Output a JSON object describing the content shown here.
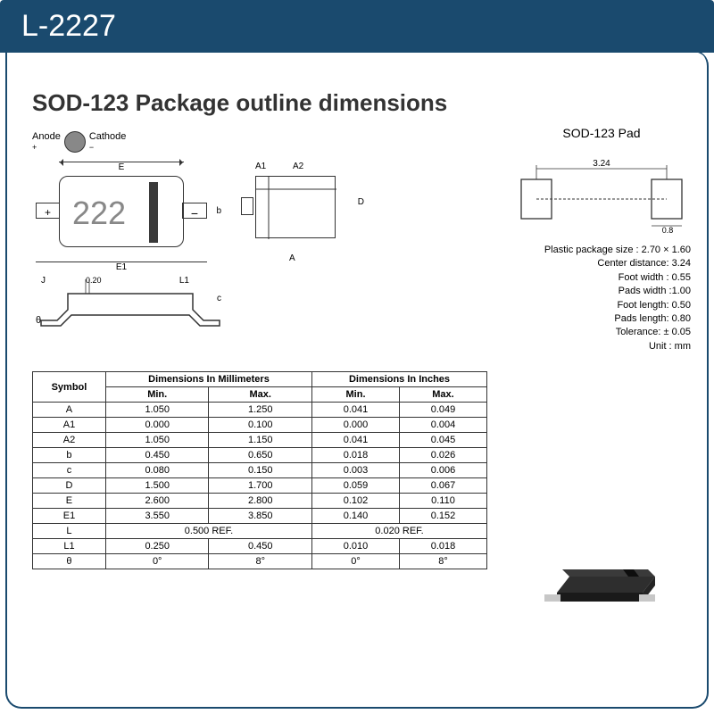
{
  "header": {
    "part_number": "L-2227"
  },
  "title": "SOD-123 Package outline dimensions",
  "top_diagram": {
    "anode": "Anode",
    "anode_sign": "+",
    "cathode": "Cathode",
    "cathode_sign": "−",
    "marking": "222",
    "plus": "+",
    "minus": "−",
    "dim_e": "E",
    "dim_e1": "E1",
    "dim_b": "b"
  },
  "side_diagram": {
    "a1": "A1",
    "a2": "A2",
    "d": "D",
    "a": "A"
  },
  "profile_diagram": {
    "j": "J",
    "l1": "L1",
    "val020": "0.20",
    "c": "c",
    "theta": "θ"
  },
  "pad": {
    "title": "SOD-123 Pad",
    "dim_324": "3.24",
    "dim_08": "0.8",
    "specs": [
      "Plastic package size : 2.70 × 1.60",
      "Center distance: 3.24",
      "Foot width : 0.55",
      "Pads width :1.00",
      "Foot length: 0.50",
      "Pads length: 0.80",
      "Tolerance: ± 0.05",
      "Unit : mm"
    ]
  },
  "table": {
    "header_symbol": "Symbol",
    "header_mm": "Dimensions In Millimeters",
    "header_in": "Dimensions In Inches",
    "sub_min": "Min.",
    "sub_max": "Max.",
    "rows": [
      {
        "sym": "A",
        "mm_min": "1.050",
        "mm_max": "1.250",
        "in_min": "0.041",
        "in_max": "0.049"
      },
      {
        "sym": "A1",
        "mm_min": "0.000",
        "mm_max": "0.100",
        "in_min": "0.000",
        "in_max": "0.004"
      },
      {
        "sym": "A2",
        "mm_min": "1.050",
        "mm_max": "1.150",
        "in_min": "0.041",
        "in_max": "0.045"
      },
      {
        "sym": "b",
        "mm_min": "0.450",
        "mm_max": "0.650",
        "in_min": "0.018",
        "in_max": "0.026"
      },
      {
        "sym": "c",
        "mm_min": "0.080",
        "mm_max": "0.150",
        "in_min": "0.003",
        "in_max": "0.006"
      },
      {
        "sym": "D",
        "mm_min": "1.500",
        "mm_max": "1.700",
        "in_min": "0.059",
        "in_max": "0.067"
      },
      {
        "sym": "E",
        "mm_min": "2.600",
        "mm_max": "2.800",
        "in_min": "0.102",
        "in_max": "0.110"
      },
      {
        "sym": "E1",
        "mm_min": "3.550",
        "mm_max": "3.850",
        "in_min": "0.140",
        "in_max": "0.152"
      }
    ],
    "row_l": {
      "sym": "L",
      "mm": "0.500 REF.",
      "in": "0.020 REF."
    },
    "row_l1": {
      "sym": "L1",
      "mm_min": "0.250",
      "mm_max": "0.450",
      "in_min": "0.010",
      "in_max": "0.018"
    },
    "row_th": {
      "sym": "θ",
      "mm_min": "0°",
      "mm_max": "8°",
      "in_min": "0°",
      "in_max": "8°"
    }
  },
  "colors": {
    "header_bg": "#1a4a6e",
    "border": "#333333",
    "component_body": "#2e2e2e",
    "component_lead": "#c7c7c7"
  }
}
